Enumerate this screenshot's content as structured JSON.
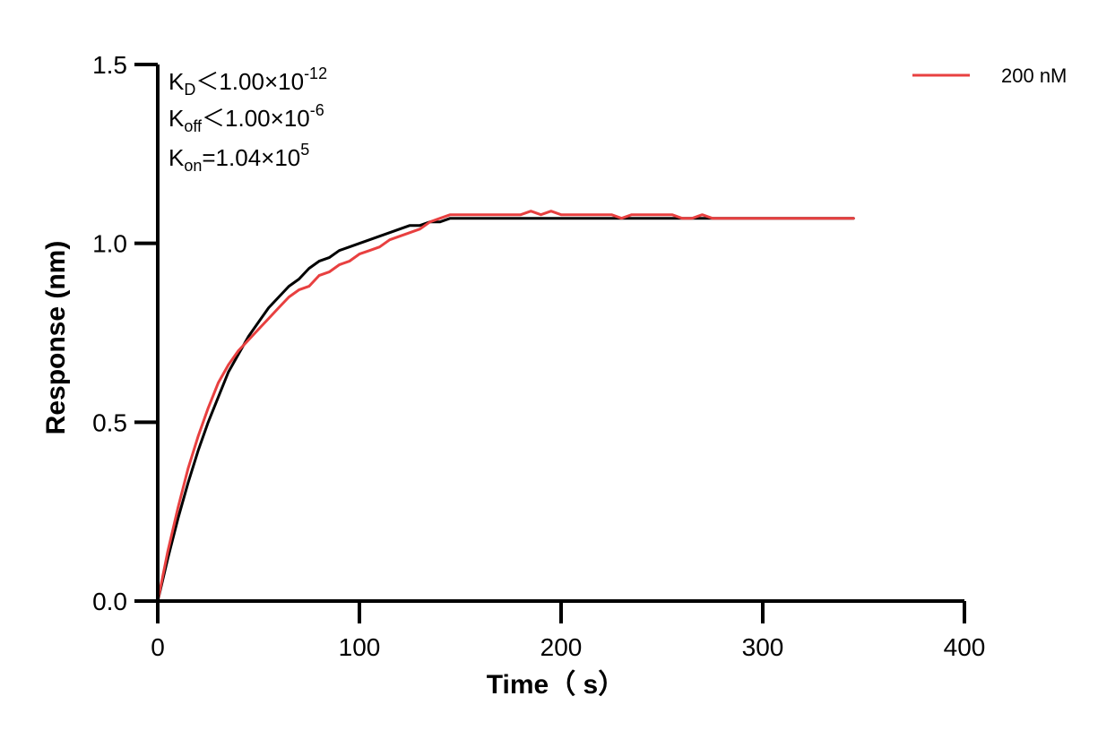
{
  "chart_data": {
    "type": "line",
    "title": "",
    "xlabel": "Time（ s）",
    "ylabel": "Response (nm)",
    "xlim": [
      0,
      400
    ],
    "ylim": [
      0,
      1.5
    ],
    "x_ticks": [
      "0",
      "100",
      "200",
      "300",
      "400"
    ],
    "y_ticks": [
      "0.0",
      "0.5",
      "1.0",
      "1.5"
    ],
    "grid": false,
    "legend_position": "top-right",
    "annotations": {
      "kd": {
        "main": "K",
        "sub": "D",
        "rel": "＜1.00×10",
        "sup": "-12"
      },
      "koff": {
        "main": "K",
        "sub": "off",
        "rel": "＜1.00×10",
        "sup": "-6"
      },
      "kon": {
        "main": "K",
        "sub": "on",
        "rel": "=1.04×10",
        "sup": "5"
      }
    },
    "series": [
      {
        "name": "200 nM",
        "color": "#e84040",
        "role": "measured",
        "x": [
          0,
          5,
          10,
          15,
          20,
          25,
          30,
          35,
          40,
          45,
          50,
          55,
          60,
          65,
          70,
          75,
          80,
          85,
          90,
          95,
          100,
          105,
          110,
          115,
          120,
          125,
          130,
          135,
          140,
          145,
          150,
          155,
          160,
          165,
          170,
          175,
          180,
          185,
          190,
          195,
          200,
          205,
          210,
          215,
          220,
          225,
          230,
          235,
          240,
          245,
          250,
          255,
          260,
          265,
          270,
          275,
          280,
          285,
          290,
          295,
          300,
          305,
          310,
          315,
          320,
          325,
          330,
          335,
          340,
          345
        ],
        "y": [
          0,
          0.14,
          0.26,
          0.37,
          0.46,
          0.54,
          0.61,
          0.66,
          0.7,
          0.73,
          0.76,
          0.79,
          0.82,
          0.85,
          0.87,
          0.88,
          0.91,
          0.92,
          0.94,
          0.95,
          0.97,
          0.98,
          0.99,
          1.01,
          1.02,
          1.03,
          1.04,
          1.06,
          1.07,
          1.08,
          1.08,
          1.08,
          1.08,
          1.08,
          1.08,
          1.08,
          1.08,
          1.09,
          1.08,
          1.09,
          1.08,
          1.08,
          1.08,
          1.08,
          1.08,
          1.08,
          1.07,
          1.08,
          1.08,
          1.08,
          1.08,
          1.08,
          1.07,
          1.07,
          1.08,
          1.07,
          1.07,
          1.07,
          1.07,
          1.07,
          1.07,
          1.07,
          1.07,
          1.07,
          1.07,
          1.07,
          1.07,
          1.07,
          1.07,
          1.07
        ]
      },
      {
        "name": "",
        "color": "#000000",
        "role": "fit",
        "x": [
          0,
          5,
          10,
          15,
          20,
          25,
          30,
          35,
          40,
          45,
          50,
          55,
          60,
          65,
          70,
          75,
          80,
          85,
          90,
          95,
          100,
          105,
          110,
          115,
          120,
          125,
          130,
          135,
          140,
          145,
          150,
          155,
          200,
          250,
          300,
          345
        ],
        "y": [
          0,
          0.12,
          0.23,
          0.33,
          0.42,
          0.5,
          0.57,
          0.64,
          0.69,
          0.74,
          0.78,
          0.82,
          0.85,
          0.88,
          0.9,
          0.93,
          0.95,
          0.96,
          0.98,
          0.99,
          1.0,
          1.01,
          1.02,
          1.03,
          1.04,
          1.05,
          1.05,
          1.06,
          1.06,
          1.07,
          1.07,
          1.07,
          1.07,
          1.07,
          1.07,
          1.07
        ]
      }
    ]
  }
}
